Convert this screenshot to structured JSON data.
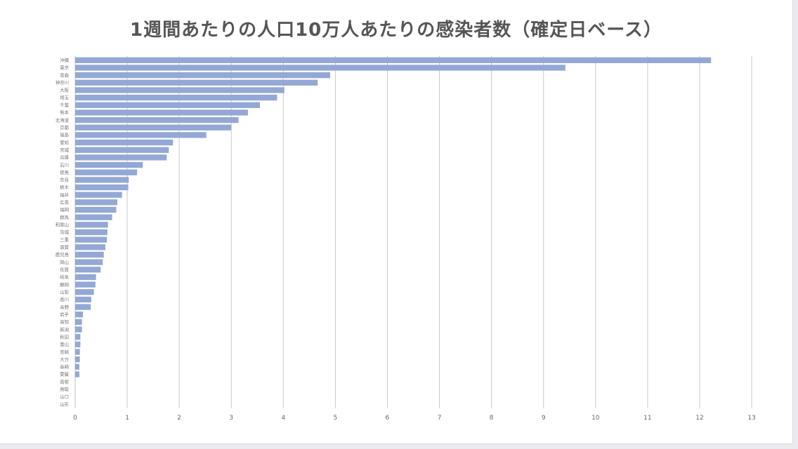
{
  "chart_data": {
    "type": "bar",
    "orientation": "horizontal",
    "title": "1週間あたりの人口10万人あたりの感染者数（確定日ベース）",
    "xlabel": "",
    "ylabel": "",
    "xlim": [
      0,
      13
    ],
    "xticks": [
      0,
      1,
      2,
      3,
      4,
      5,
      6,
      7,
      8,
      9,
      10,
      11,
      12,
      13
    ],
    "grid": true,
    "bar_color": "#93a8d6",
    "categories": [
      "沖縄",
      "東京",
      "青森",
      "神奈川",
      "大阪",
      "埼玉",
      "千葉",
      "熊本",
      "北海道",
      "京都",
      "福島",
      "愛知",
      "宮城",
      "兵庫",
      "石川",
      "徳島",
      "奈良",
      "栃木",
      "福井",
      "広島",
      "福岡",
      "群馬",
      "和歌山",
      "茨城",
      "三重",
      "滋賀",
      "鹿児島",
      "岡山",
      "佐賀",
      "岐阜",
      "静岡",
      "山梨",
      "香川",
      "長野",
      "岩手",
      "高知",
      "新潟",
      "秋田",
      "富山",
      "宮崎",
      "大分",
      "長崎",
      "愛媛",
      "島根",
      "鳥取",
      "山口",
      "山形"
    ],
    "values": [
      12.22,
      9.42,
      4.9,
      4.66,
      4.02,
      3.88,
      3.55,
      3.32,
      3.14,
      3.0,
      2.52,
      1.88,
      1.8,
      1.76,
      1.3,
      1.19,
      1.03,
      1.02,
      0.9,
      0.81,
      0.79,
      0.71,
      0.63,
      0.62,
      0.61,
      0.58,
      0.55,
      0.53,
      0.49,
      0.4,
      0.39,
      0.36,
      0.31,
      0.3,
      0.15,
      0.13,
      0.13,
      0.1,
      0.1,
      0.09,
      0.09,
      0.08,
      0.08,
      0.0,
      0.0,
      0.0,
      0.0
    ]
  }
}
